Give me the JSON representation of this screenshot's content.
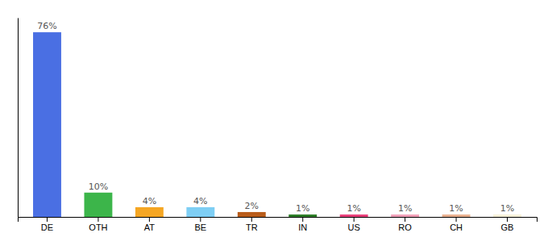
{
  "chart_data": {
    "type": "bar",
    "categories": [
      "DE",
      "OTH",
      "AT",
      "BE",
      "TR",
      "IN",
      "US",
      "RO",
      "CH",
      "GB"
    ],
    "values": [
      76,
      10,
      4,
      4,
      2,
      1,
      1,
      1,
      1,
      1
    ],
    "value_labels": [
      "76%",
      "10%",
      "4%",
      "4%",
      "2%",
      "1%",
      "1%",
      "1%",
      "1%",
      "1%"
    ],
    "colors": [
      "#4a6fe3",
      "#3cb54a",
      "#f5a623",
      "#7ecef4",
      "#b85c1a",
      "#2d7d27",
      "#e8407a",
      "#f0a0b8",
      "#e8b090",
      "#f5f0d8"
    ],
    "ylim": [
      0,
      82
    ],
    "data_labels": true,
    "tick_labels": "x"
  }
}
